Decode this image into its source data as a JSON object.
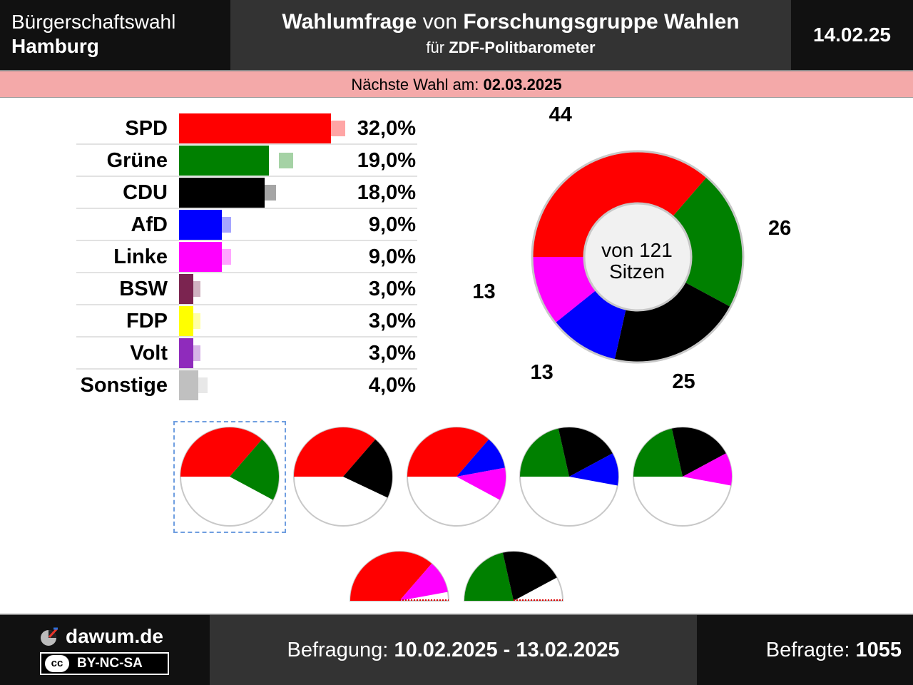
{
  "header": {
    "election_type": "Bürgerschaftswahl",
    "region": "Hamburg",
    "title_bold1": "Wahlumfrage",
    "title_mid": "von",
    "title_bold2": "Forschungsgruppe Wahlen",
    "subtitle_pre": "für",
    "subtitle_bold": "ZDF-Politbarometer",
    "date": "14.02.25"
  },
  "next_election": {
    "label": "Nächste Wahl am:",
    "date": "02.03.2025"
  },
  "chart_data": [
    {
      "type": "bar",
      "categories": [
        "SPD",
        "Grüne",
        "CDU",
        "AfD",
        "Linke",
        "BSW",
        "FDP",
        "Volt",
        "Sonstige"
      ],
      "values": [
        32.0,
        19.0,
        18.0,
        9.0,
        9.0,
        3.0,
        3.0,
        3.0,
        4.0
      ],
      "value_labels": [
        "32,0%",
        "19,0%",
        "18,0%",
        "9,0%",
        "9,0%",
        "3,0%",
        "3,0%",
        "3,0%",
        "4,0%"
      ],
      "previous_values": [
        35.0,
        24.0,
        20.5,
        11.0,
        11.0,
        4.5,
        4.5,
        4.5,
        6.0
      ],
      "colors": [
        "#ff0000",
        "#008000",
        "#000000",
        "#0000ff",
        "#ff00ff",
        "#7b2450",
        "#ffff00",
        "#8f2bbc",
        "#c0c0c0"
      ],
      "xlim": [
        0,
        32
      ]
    },
    {
      "type": "pie",
      "subtype": "donut",
      "categories": [
        "SPD",
        "Grüne",
        "CDU",
        "AfD",
        "Linke"
      ],
      "values": [
        44,
        26,
        25,
        13,
        13
      ],
      "colors": [
        "#ff0000",
        "#008000",
        "#000000",
        "#0000ff",
        "#ff00ff"
      ],
      "total": 121,
      "center_label_1": "von 121",
      "center_label_2": "Sitzen"
    }
  ],
  "coalitions": [
    {
      "parties": [
        "SPD",
        "Grüne"
      ],
      "seats": [
        44,
        26
      ],
      "colors": [
        "#ff0000",
        "#008000"
      ],
      "selected": true,
      "majority": true
    },
    {
      "parties": [
        "SPD",
        "CDU"
      ],
      "seats": [
        44,
        25
      ],
      "colors": [
        "#ff0000",
        "#000000"
      ],
      "selected": false,
      "majority": true
    },
    {
      "parties": [
        "SPD",
        "AfD",
        "Linke"
      ],
      "seats": [
        44,
        13,
        13
      ],
      "colors": [
        "#ff0000",
        "#0000ff",
        "#ff00ff"
      ],
      "selected": false,
      "majority": true
    },
    {
      "parties": [
        "Grüne",
        "CDU",
        "AfD"
      ],
      "seats": [
        26,
        25,
        13
      ],
      "colors": [
        "#008000",
        "#000000",
        "#0000ff"
      ],
      "selected": false,
      "majority": true
    },
    {
      "parties": [
        "Grüne",
        "CDU",
        "Linke"
      ],
      "seats": [
        26,
        25,
        13
      ],
      "colors": [
        "#008000",
        "#000000",
        "#ff00ff"
      ],
      "selected": false,
      "majority": true
    },
    {
      "parties": [
        "SPD",
        "Linke"
      ],
      "seats": [
        44,
        13
      ],
      "colors": [
        "#ff0000",
        "#ff00ff"
      ],
      "selected": false,
      "majority": false
    },
    {
      "parties": [
        "Grüne",
        "CDU"
      ],
      "seats": [
        26,
        25
      ],
      "colors": [
        "#008000",
        "#000000"
      ],
      "selected": false,
      "majority": false
    }
  ],
  "footer": {
    "site": "dawum.de",
    "license": "BY-NC-SA",
    "license_icon": "cc",
    "survey_label": "Befragung:",
    "survey_period": "10.02.2025 - 13.02.2025",
    "respondents_label": "Befragte:",
    "respondents": "1055"
  }
}
